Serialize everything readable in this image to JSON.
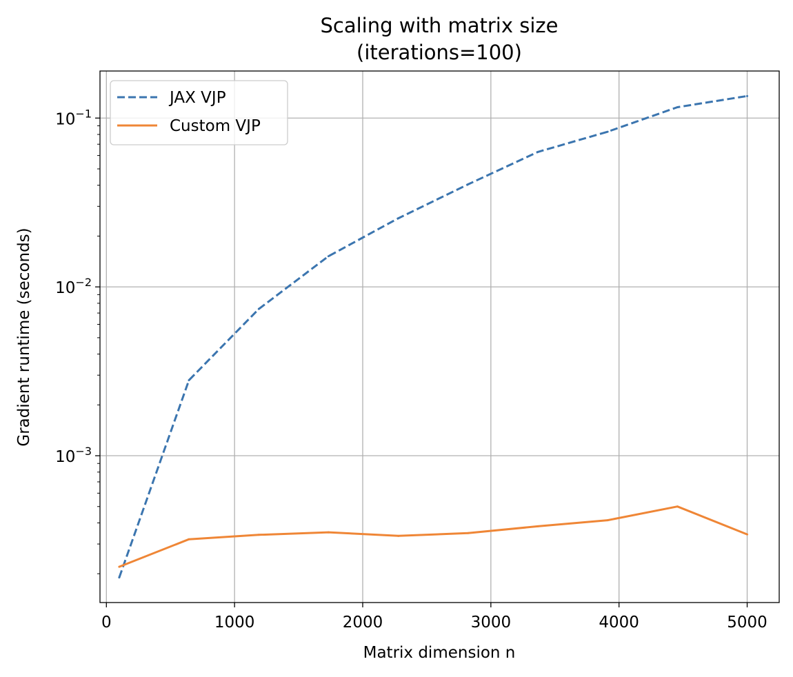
{
  "chart_data": {
    "type": "line",
    "title": "Scaling with matrix size",
    "subtitle": "(iterations=100)",
    "xlabel": "Matrix dimension n",
    "ylabel": "Gradient runtime (seconds)",
    "xlim": [
      -50,
      5250
    ],
    "ylim": [
      0.000135,
      0.19
    ],
    "yscale": "log",
    "grid": true,
    "legend_position": "top-left",
    "x_ticks": [
      0,
      1000,
      2000,
      3000,
      4000,
      5000
    ],
    "x_tick_labels": [
      "0",
      "1000",
      "2000",
      "3000",
      "4000",
      "5000"
    ],
    "y_major_ticks": [
      0.001,
      0.01,
      0.1
    ],
    "y_tick_labels": [
      {
        "base": "10",
        "exp": "−3"
      },
      {
        "base": "10",
        "exp": "−2"
      },
      {
        "base": "10",
        "exp": "−1"
      }
    ],
    "x": [
      100,
      644,
      1189,
      1733,
      2278,
      2822,
      3367,
      3911,
      4456,
      5000
    ],
    "series": [
      {
        "name": "JAX VJP",
        "color": "#3b75af",
        "style": "dashed",
        "values": [
          0.00019,
          0.0028,
          0.0074,
          0.0152,
          0.0255,
          0.0405,
          0.063,
          0.083,
          0.116,
          0.135
        ]
      },
      {
        "name": "Custom VJP",
        "color": "#ef8636",
        "style": "solid",
        "values": [
          0.00022,
          0.00032,
          0.00034,
          0.000352,
          0.000335,
          0.000348,
          0.000382,
          0.000415,
          0.0005,
          0.000342
        ]
      }
    ]
  }
}
